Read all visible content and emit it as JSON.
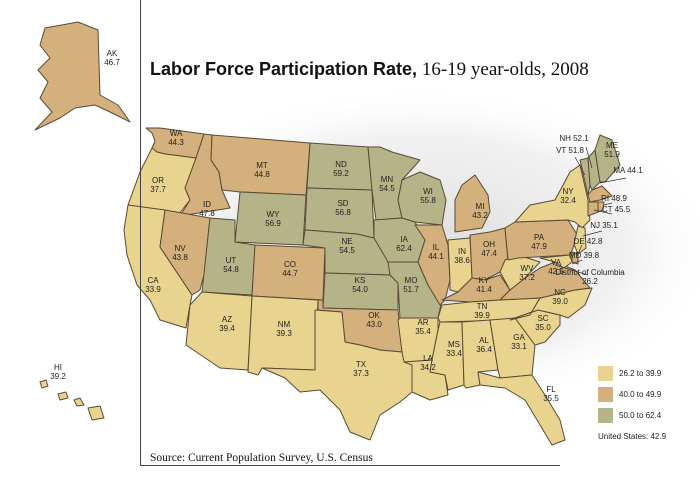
{
  "title": {
    "bold": "Labor Force Participation Rate,",
    "rest": " 16-19 year-olds, 2008"
  },
  "source": "Source: Current Population Survey, U.S. Census",
  "legend": [
    {
      "label": "26.2 to 39.9",
      "color": "#e8d48e"
    },
    {
      "label": "40.0 to 49.9",
      "color": "#d3b07c"
    },
    {
      "label": "50.0 to 62.4",
      "color": "#b5b489"
    }
  ],
  "us_total": "United States: 42.9",
  "states": {
    "AK": {
      "name": "AK",
      "value": "46.7",
      "cls": 1
    },
    "HI": {
      "name": "HI",
      "value": "39.2",
      "cls": 0
    },
    "WA": {
      "name": "WA",
      "value": "44.3",
      "cls": 1
    },
    "OR": {
      "name": "OR",
      "value": "37.7",
      "cls": 0
    },
    "CA": {
      "name": "CA",
      "value": "33.9",
      "cls": 0
    },
    "ID": {
      "name": "ID",
      "value": "47.8",
      "cls": 1
    },
    "NV": {
      "name": "NV",
      "value": "43.8",
      "cls": 1
    },
    "MT": {
      "name": "MT",
      "value": "44.8",
      "cls": 1
    },
    "WY": {
      "name": "WY",
      "value": "56.9",
      "cls": 2
    },
    "UT": {
      "name": "UT",
      "value": "54.8",
      "cls": 2
    },
    "CO": {
      "name": "CO",
      "value": "44.7",
      "cls": 1
    },
    "AZ": {
      "name": "AZ",
      "value": "39.4",
      "cls": 0
    },
    "NM": {
      "name": "NM",
      "value": "39.3",
      "cls": 0
    },
    "ND": {
      "name": "ND",
      "value": "59.2",
      "cls": 2
    },
    "SD": {
      "name": "SD",
      "value": "56.8",
      "cls": 2
    },
    "NE": {
      "name": "NE",
      "value": "54.5",
      "cls": 2
    },
    "KS": {
      "name": "KS",
      "value": "54.0",
      "cls": 2
    },
    "OK": {
      "name": "OK",
      "value": "43.0",
      "cls": 1
    },
    "TX": {
      "name": "TX",
      "value": "37.3",
      "cls": 0
    },
    "MN": {
      "name": "MN",
      "value": "54.5",
      "cls": 2
    },
    "IA": {
      "name": "IA",
      "value": "62.4",
      "cls": 2
    },
    "MO": {
      "name": "MO",
      "value": "51.7",
      "cls": 2
    },
    "AR": {
      "name": "AR",
      "value": "35.4",
      "cls": 0
    },
    "LA": {
      "name": "LA",
      "value": "34.2",
      "cls": 0
    },
    "WI": {
      "name": "WI",
      "value": "55.8",
      "cls": 2
    },
    "IL": {
      "name": "IL",
      "value": "44.1",
      "cls": 1
    },
    "MI": {
      "name": "MI",
      "value": "43.2",
      "cls": 1
    },
    "IN": {
      "name": "IN",
      "value": "38.6",
      "cls": 0
    },
    "OH": {
      "name": "OH",
      "value": "47.4",
      "cls": 1
    },
    "KY": {
      "name": "KY",
      "value": "41.4",
      "cls": 1
    },
    "TN": {
      "name": "TN",
      "value": "39.9",
      "cls": 0
    },
    "MS": {
      "name": "MS",
      "value": "33.4",
      "cls": 0
    },
    "AL": {
      "name": "AL",
      "value": "36.4",
      "cls": 0
    },
    "GA": {
      "name": "GA",
      "value": "33.1",
      "cls": 0
    },
    "FL": {
      "name": "FL",
      "value": "35.5",
      "cls": 0
    },
    "SC": {
      "name": "SC",
      "value": "35.0",
      "cls": 0
    },
    "NC": {
      "name": "NC",
      "value": "39.0",
      "cls": 0
    },
    "VA": {
      "name": "VA",
      "value": "42.5",
      "cls": 1
    },
    "WV": {
      "name": "WV",
      "value": "37.2",
      "cls": 0
    },
    "PA": {
      "name": "PA",
      "value": "47.9",
      "cls": 1
    },
    "NY": {
      "name": "NY",
      "value": "32.4",
      "cls": 0
    },
    "ME": {
      "name": "ME",
      "value": "51.9",
      "cls": 2
    },
    "NH": {
      "name": "NH",
      "value": "52.1",
      "cls": 2
    },
    "VT": {
      "name": "VT",
      "value": "51.8",
      "cls": 2
    },
    "MA": {
      "name": "MA",
      "value": "44.1",
      "cls": 1
    },
    "RI": {
      "name": "RI",
      "value": "48.9",
      "cls": 1
    },
    "CT": {
      "name": "CT",
      "value": "45.5",
      "cls": 1
    },
    "NJ": {
      "name": "NJ",
      "value": "35.1",
      "cls": 0
    },
    "DE": {
      "name": "DE",
      "value": "42.8",
      "cls": 1
    },
    "MD": {
      "name": "MD",
      "value": "39.8",
      "cls": 0
    },
    "DC": {
      "name": "District of Columbia",
      "value": "26.2",
      "cls": 0
    }
  }
}
